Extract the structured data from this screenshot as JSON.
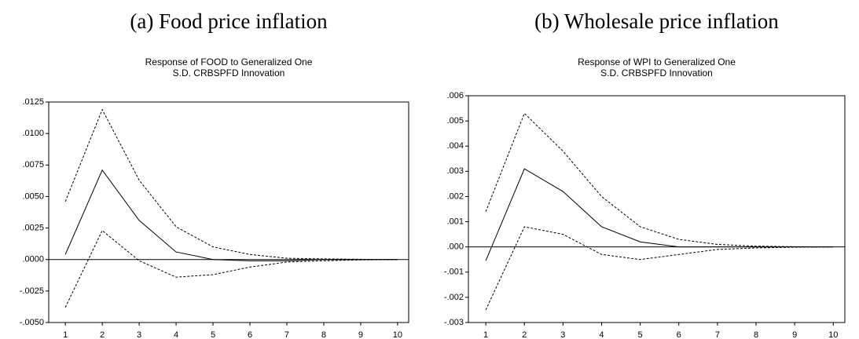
{
  "chart_data": [
    {
      "type": "line",
      "caption": "(a) Food price inflation",
      "title": [
        "Response of FOOD to Generalized One",
        "S.D. CRBSPFD Innovation"
      ],
      "x": [
        1,
        2,
        3,
        4,
        5,
        6,
        7,
        8,
        9,
        10
      ],
      "series": [
        {
          "color": "#000000",
          "linestyle": "dashed",
          "values": [
            0.0046,
            0.0119,
            0.0063,
            0.0026,
            0.001,
            0.0004,
            0.0001,
            5e-05,
            2e-05,
            0.0
          ]
        },
        {
          "color": "#000000",
          "linestyle": "solid",
          "values": [
            0.0004,
            0.0071,
            0.0031,
            0.0006,
            0.0,
            -0.0001,
            -0.0001,
            0.0,
            0.0,
            0.0
          ]
        },
        {
          "color": "#000000",
          "linestyle": "dashed",
          "values": [
            -0.0038,
            0.0023,
            -0.0001,
            -0.0014,
            -0.0012,
            -0.0006,
            -0.0002,
            -0.0001,
            -3e-05,
            0.0
          ]
        }
      ],
      "xlim": [
        0.55,
        10.3
      ],
      "xticks": [
        1,
        2,
        3,
        4,
        5,
        6,
        7,
        8,
        9,
        10
      ],
      "ylim": [
        -0.005,
        0.0125
      ],
      "yticks": [
        {
          "value": -0.005,
          "label": "-.0050"
        },
        {
          "value": -0.0025,
          "label": "-.0025"
        },
        {
          "value": 0,
          "label": ".0000"
        },
        {
          "value": 0.0025,
          "label": ".0025"
        },
        {
          "value": 0.005,
          "label": ".0050"
        },
        {
          "value": 0.0075,
          "label": ".0075"
        },
        {
          "value": 0.01,
          "label": ".0100"
        },
        {
          "value": 0.0125,
          "label": ".0125"
        }
      ],
      "reference_line": 0
    },
    {
      "type": "line",
      "caption": "(b) Wholesale price inflation",
      "title": [
        "Response of WPI to Generalized One",
        "S.D. CRBSPFD Innovation"
      ],
      "x": [
        1,
        2,
        3,
        4,
        5,
        6,
        7,
        8,
        9,
        10
      ],
      "series": [
        {
          "color": "#000000",
          "linestyle": "dashed",
          "values": [
            0.0014,
            0.0053,
            0.0038,
            0.002,
            0.0008,
            0.0003,
            0.0001,
            3e-05,
            1e-05,
            0.0
          ]
        },
        {
          "color": "#000000",
          "linestyle": "solid",
          "values": [
            -0.00055,
            0.0031,
            0.0022,
            0.0008,
            0.0002,
            0.0,
            0.0,
            0.0,
            0.0,
            0.0
          ]
        },
        {
          "color": "#000000",
          "linestyle": "dashed",
          "values": [
            -0.0025,
            0.0008,
            0.0005,
            -0.0003,
            -0.0005,
            -0.0003,
            -0.0001,
            -4e-05,
            -1e-05,
            0.0
          ]
        }
      ],
      "xlim": [
        0.55,
        10.3
      ],
      "xticks": [
        1,
        2,
        3,
        4,
        5,
        6,
        7,
        8,
        9,
        10
      ],
      "ylim": [
        -0.003,
        0.006
      ],
      "yticks": [
        {
          "value": -0.003,
          "label": "-.003"
        },
        {
          "value": -0.002,
          "label": "-.002"
        },
        {
          "value": -0.001,
          "label": "-.001"
        },
        {
          "value": 0,
          "label": ".000"
        },
        {
          "value": 0.001,
          "label": ".001"
        },
        {
          "value": 0.002,
          "label": ".002"
        },
        {
          "value": 0.003,
          "label": ".003"
        },
        {
          "value": 0.004,
          "label": ".004"
        },
        {
          "value": 0.005,
          "label": ".005"
        },
        {
          "value": 0.006,
          "label": ".006"
        }
      ],
      "reference_line": 0
    }
  ]
}
